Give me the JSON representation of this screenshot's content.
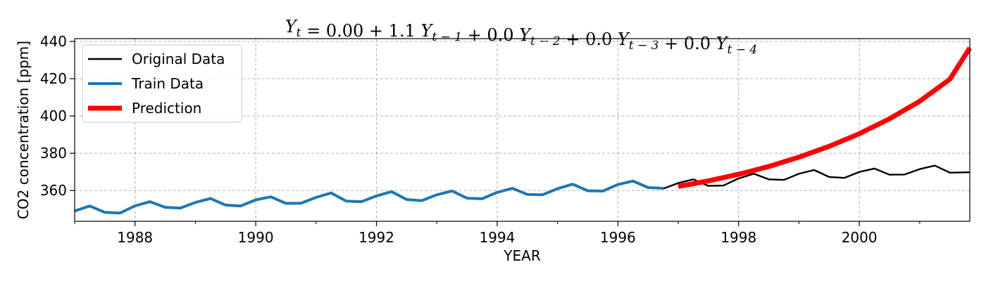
{
  "chart_data": {
    "type": "line",
    "title": "Y_t = 0.00 + 1.1 Y_{t-1} + 0.0 Y_{t-2} + 0.0 Y_{t-3} + 0.0 Y_{t-4}",
    "title_parts": {
      "lhs": "Y",
      "lhs_sub": "t",
      "rhs": [
        {
          "text": " = 0.00 + 1.1 "
        },
        {
          "text": "Y",
          "sub": "t − 1"
        },
        {
          "text": " + 0.0 "
        },
        {
          "text": "Y",
          "sub": "t − 2"
        },
        {
          "text": " + 0.0 "
        },
        {
          "text": "Y",
          "sub": "t − 3"
        },
        {
          "text": " + 0.0 "
        },
        {
          "text": "Y",
          "sub": "t − 4"
        }
      ]
    },
    "xlabel": "YEAR",
    "ylabel": "CO2 concentration [ppm]",
    "xlim": [
      1987.0,
      2001.83
    ],
    "ylim": [
      343.5,
      441.5
    ],
    "xticks": [
      1988,
      1990,
      1992,
      1994,
      1996,
      1998,
      2000
    ],
    "xtick_labels": [
      "1988",
      "1990",
      "1992",
      "1994",
      "1996",
      "1998",
      "2000"
    ],
    "yticks": [
      360,
      380,
      400,
      420,
      440
    ],
    "ytick_labels": [
      "360",
      "380",
      "400",
      "420",
      "440"
    ],
    "grid": true,
    "legend_position": "top-left",
    "series": [
      {
        "name": "Original Data",
        "color": "#000000",
        "x": [
          1996.75,
          1997.0,
          1997.25,
          1997.5,
          1997.75,
          1998.0,
          1998.25,
          1998.5,
          1998.75,
          1999.0,
          1999.25,
          1999.5,
          1999.75,
          2000.0,
          2000.25,
          2000.5,
          2000.75,
          2001.0,
          2001.25,
          2001.5,
          2001.83
        ],
        "y": [
          361.0,
          364.0,
          366.0,
          362.5,
          362.7,
          366.5,
          369.0,
          366.0,
          365.7,
          369.0,
          371.0,
          367.3,
          366.8,
          370.0,
          371.8,
          368.5,
          368.6,
          371.5,
          373.4,
          369.6,
          369.8
        ]
      },
      {
        "name": "Train Data",
        "color": "#1f77b4",
        "x": [
          1987.0,
          1987.25,
          1987.5,
          1987.75,
          1988.0,
          1988.25,
          1988.5,
          1988.75,
          1989.0,
          1989.25,
          1989.5,
          1989.75,
          1990.0,
          1990.25,
          1990.5,
          1990.75,
          1991.0,
          1991.25,
          1991.5,
          1991.75,
          1992.0,
          1992.25,
          1992.5,
          1992.75,
          1993.0,
          1993.25,
          1993.5,
          1993.75,
          1994.0,
          1994.25,
          1994.5,
          1994.75,
          1995.0,
          1995.25,
          1995.5,
          1995.75,
          1996.0,
          1996.25,
          1996.5,
          1996.75
        ],
        "y": [
          349.0,
          351.7,
          348.3,
          347.9,
          351.8,
          354.0,
          351.0,
          350.6,
          353.6,
          355.7,
          352.2,
          351.7,
          355.0,
          356.6,
          353.1,
          353.2,
          356.3,
          358.7,
          354.3,
          354.0,
          357.1,
          359.4,
          355.2,
          354.6,
          357.7,
          359.8,
          355.9,
          355.6,
          359.0,
          361.2,
          357.9,
          357.7,
          361.0,
          363.4,
          359.9,
          359.7,
          363.2,
          365.1,
          361.6,
          361.2
        ]
      },
      {
        "name": "Prediction",
        "color": "#ff0000",
        "x": [
          1997.0,
          1997.5,
          1998.0,
          1998.5,
          1999.0,
          1999.5,
          2000.0,
          2000.5,
          2001.0,
          2001.5,
          2001.83
        ],
        "y": [
          362.2,
          365.2,
          368.7,
          372.9,
          377.9,
          383.7,
          390.5,
          398.5,
          407.9,
          419.7,
          436.5
        ]
      }
    ]
  }
}
